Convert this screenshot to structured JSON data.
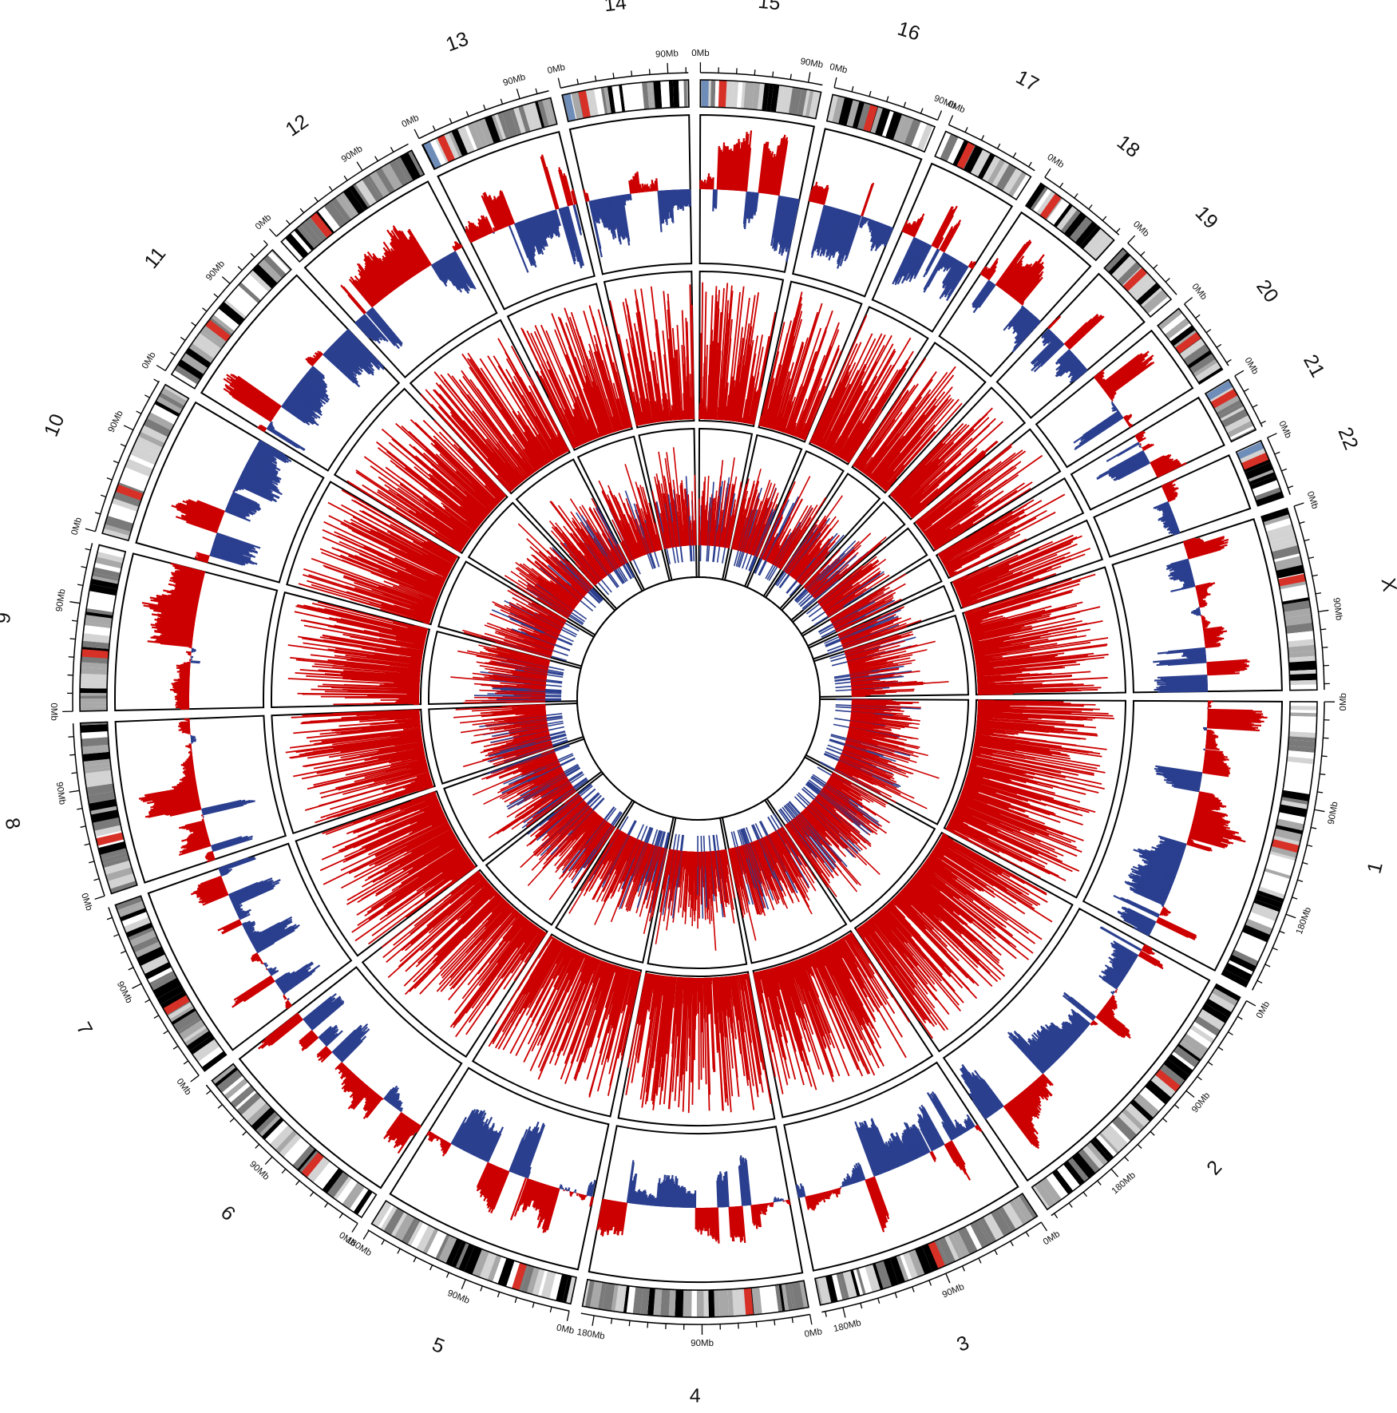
{
  "colors": {
    "gain": "#cc0000",
    "loss": "#2b3f8f",
    "centromere": "#d73027",
    "band_black": "#000000",
    "band_dark": "#7a7a7a",
    "band_mid": "#a8a8a8",
    "band_light": "#d3d3d3",
    "band_white": "#ffffff",
    "stalk": "#6f8db9"
  },
  "chromosomes": [
    {
      "name": "1",
      "size_mb": 249,
      "centromere_mb": 125,
      "ticks": [
        "0Mb",
        "90Mb",
        "180Mb"
      ]
    },
    {
      "name": "2",
      "size_mb": 243,
      "centromere_mb": 93,
      "ticks": [
        "0Mb",
        "90Mb",
        "180Mb"
      ]
    },
    {
      "name": "3",
      "size_mb": 198,
      "centromere_mb": 91,
      "ticks": [
        "0Mb",
        "90Mb",
        "180Mb"
      ]
    },
    {
      "name": "4",
      "size_mb": 191,
      "centromere_mb": 50,
      "ticks": [
        "0Mb",
        "90Mb",
        "180Mb"
      ]
    },
    {
      "name": "5",
      "size_mb": 181,
      "centromere_mb": 48,
      "ticks": [
        "0Mb",
        "90Mb",
        "180Mb"
      ]
    },
    {
      "name": "6",
      "size_mb": 171,
      "centromere_mb": 60,
      "ticks": [
        "0Mb",
        "90Mb"
      ]
    },
    {
      "name": "7",
      "size_mb": 159,
      "centromere_mb": 60,
      "ticks": [
        "0Mb",
        "90Mb"
      ]
    },
    {
      "name": "8",
      "size_mb": 146,
      "centromere_mb": 45,
      "ticks": [
        "0Mb",
        "90Mb"
      ]
    },
    {
      "name": "9",
      "size_mb": 141,
      "centromere_mb": 49,
      "ticks": [
        "0Mb",
        "90Mb"
      ]
    },
    {
      "name": "10",
      "size_mb": 136,
      "centromere_mb": 40,
      "ticks": [
        "0Mb",
        "90Mb"
      ]
    },
    {
      "name": "11",
      "size_mb": 135,
      "centromere_mb": 53,
      "ticks": [
        "0Mb",
        "90Mb"
      ]
    },
    {
      "name": "12",
      "size_mb": 134,
      "centromere_mb": 35,
      "ticks": [
        "0Mb",
        "90Mb"
      ]
    },
    {
      "name": "13",
      "size_mb": 115,
      "centromere_mb": 17,
      "ticks": [
        "0Mb",
        "90Mb"
      ]
    },
    {
      "name": "14",
      "size_mb": 107,
      "centromere_mb": 17,
      "ticks": [
        "0Mb",
        "90Mb"
      ]
    },
    {
      "name": "15",
      "size_mb": 102,
      "centromere_mb": 19,
      "ticks": [
        "0Mb",
        "90Mb"
      ]
    },
    {
      "name": "16",
      "size_mb": 90,
      "centromere_mb": 36,
      "ticks": [
        "0Mb",
        "90Mb"
      ]
    },
    {
      "name": "17",
      "size_mb": 81,
      "centromere_mb": 24,
      "ticks": [
        "0Mb"
      ]
    },
    {
      "name": "18",
      "size_mb": 78,
      "centromere_mb": 18,
      "ticks": [
        "0Mb"
      ]
    },
    {
      "name": "19",
      "size_mb": 59,
      "centromere_mb": 26,
      "ticks": [
        "0Mb"
      ]
    },
    {
      "name": "20",
      "size_mb": 63,
      "centromere_mb": 28,
      "ticks": [
        "0Mb"
      ]
    },
    {
      "name": "21",
      "size_mb": 48,
      "centromere_mb": 12,
      "ticks": [
        "0Mb"
      ]
    },
    {
      "name": "22",
      "size_mb": 51,
      "centromere_mb": 14,
      "ticks": [
        "0Mb"
      ]
    },
    {
      "name": "X",
      "size_mb": 155,
      "centromere_mb": 60,
      "ticks": [
        "0Mb",
        "90Mb"
      ]
    }
  ],
  "tracks": [
    {
      "id": "copy-number-track",
      "type": "bidirectional-bar",
      "colors": [
        "gain",
        "loss"
      ]
    },
    {
      "id": "gain-frequency-track-outer",
      "type": "spike",
      "colors": [
        "gain"
      ]
    },
    {
      "id": "gain-frequency-track-inner",
      "type": "spike",
      "colors": [
        "gain",
        "loss"
      ]
    }
  ]
}
